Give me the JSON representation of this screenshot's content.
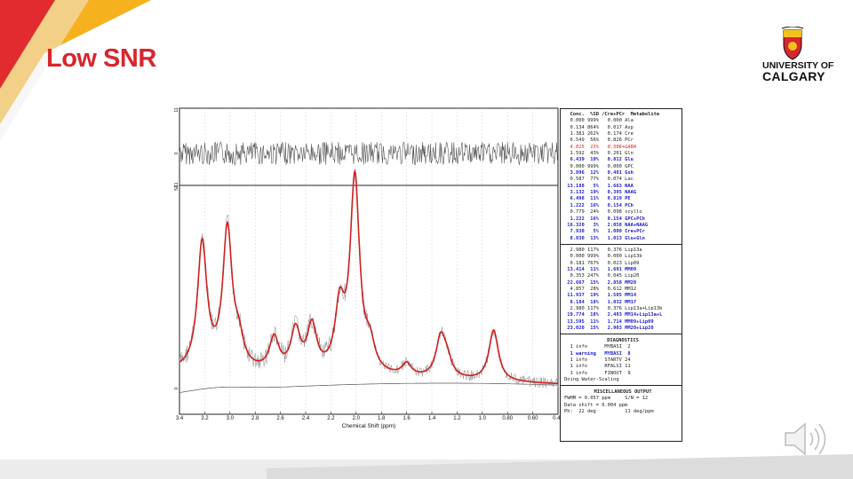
{
  "slide": {
    "title": "Low SNR"
  },
  "logo": {
    "line1": "UNIVERSITY OF",
    "line2": "CALGARY"
  },
  "chart_data": {
    "type": "line",
    "xlabel": "Chemical Shift (ppm)",
    "x_ticks": [
      "3.4",
      "3.2",
      "3.0",
      "2.8",
      "2.6",
      "2.4",
      "2.2",
      "2.0",
      "1.8",
      "1.6",
      "1.4",
      "1.2",
      "1.0",
      "0.80",
      "0.60",
      "0.40"
    ],
    "xlim": [
      3.4,
      0.4
    ],
    "residual_ticks": [
      "11",
      "0",
      "-11"
    ],
    "main_ticks": [
      "51",
      "0"
    ],
    "fit_peaks": [
      {
        "ppm": 3.22,
        "height": 0.62
      },
      {
        "ppm": 3.02,
        "height": 0.68
      },
      {
        "ppm": 2.93,
        "height": 0.12
      },
      {
        "ppm": 2.65,
        "height": 0.16
      },
      {
        "ppm": 2.48,
        "height": 0.2
      },
      {
        "ppm": 2.35,
        "height": 0.22
      },
      {
        "ppm": 2.13,
        "height": 0.3
      },
      {
        "ppm": 2.01,
        "height": 0.95
      },
      {
        "ppm": 1.89,
        "height": 0.12
      },
      {
        "ppm": 1.6,
        "height": 0.06
      },
      {
        "ppm": 1.33,
        "height": 0.19
      },
      {
        "ppm": 1.28,
        "height": 0.08
      },
      {
        "ppm": 0.91,
        "height": 0.25
      }
    ]
  },
  "lcmodel": {
    "header": "  Conc.  %SD /Cre+PCr  Metabolite",
    "metabolites": [
      {
        "t": "  0.000 999%   0.000 Ala",
        "s": "n"
      },
      {
        "t": "  0.134 864%   0.017 Asp",
        "s": "n"
      },
      {
        "t": "  1.381 262%   0.174 Cre",
        "s": "n"
      },
      {
        "t": "  6.549  56%   0.826 PCr",
        "s": "n"
      },
      {
        "t": "  4.015  15%   0.506+GABA",
        "s": "r"
      },
      {
        "t": "  1.592  43%   0.201 Gln",
        "s": "n"
      },
      {
        "t": "  6.439  10%   0.812 Glu",
        "s": "b"
      },
      {
        "t": "  0.000 999%   0.000 GPC",
        "s": "n"
      },
      {
        "t": "  3.896  12%   0.491 Gsh",
        "s": "b"
      },
      {
        "t": "  0.587  77%   0.074 Lac",
        "s": "n"
      },
      {
        "t": " 13.188   5%   1.663 NAA",
        "s": "b"
      },
      {
        "t": "  3.132  19%   0.395 NAAG",
        "s": "b"
      },
      {
        "t": "  6.498  11%   0.819 PE",
        "s": "b"
      },
      {
        "t": "  1.222  16%   0.154 PCh",
        "s": "b"
      },
      {
        "t": "  0.779  24%   0.098 scyllo",
        "s": "n"
      },
      {
        "t": "  1.222  16%   0.154 GPC+PCh",
        "s": "b"
      },
      {
        "t": " 16.320   3%   2.058 NAA+NAAG",
        "s": "b"
      },
      {
        "t": "  7.930   5%   1.000 Cre+PCr",
        "s": "b"
      },
      {
        "t": "  8.030  13%   1.013 Glu+Gln",
        "s": "b"
      }
    ],
    "lipids": [
      {
        "t": "  2.980 117%   0.376 Lip13a",
        "s": "n"
      },
      {
        "t": "  0.000 999%   0.000 Lip13b",
        "s": "n"
      },
      {
        "t": "  0.181 767%   0.023 Lip09",
        "s": "n"
      },
      {
        "t": " 13.414  11%   1.691 MM09",
        "s": "b"
      },
      {
        "t": "  0.353 247%   0.045 Lip20",
        "s": "n"
      },
      {
        "t": " 22.667  15%   2.858 MM20",
        "s": "b"
      },
      {
        "t": "  4.857  28%   0.612 MM12",
        "s": "n"
      },
      {
        "t": " 11.937  19%   1.505 MM14",
        "s": "b"
      },
      {
        "t": "  8.184  18%   1.032 MM17",
        "s": "b"
      },
      {
        "t": "  2.980 117%   0.376 Lip13a+Lip13b",
        "s": "n"
      },
      {
        "t": " 19.774  18%   2.493 MM14+Lip13a+L",
        "s": "b"
      },
      {
        "t": " 13.595  11%   1.714 MM09+Lip09",
        "s": "b"
      },
      {
        "t": " 23.020  15%   2.903 MM20+Lip20",
        "s": "b"
      }
    ],
    "diagnostics_title": "DIAGNOSTICS",
    "diagnostics": [
      {
        "t": "  1 info      MYBASI  2",
        "s": "n"
      },
      {
        "t": "  1 warning   MYBASI  8",
        "s": "b"
      },
      {
        "t": "  1 info      STARTV 24",
        "s": "n"
      },
      {
        "t": "  1 info      RFALSI 11",
        "s": "n"
      },
      {
        "t": "  1 info      FINOUT  9",
        "s": "n"
      },
      {
        "t": "Doing Water-Scaling",
        "s": "n"
      }
    ],
    "misc_title": "MISCELLANEOUS OUTPUT",
    "misc": [
      {
        "t": "FWHM = 0.057 ppm     S/N = 12",
        "s": "n"
      },
      {
        "t": "Data shift = 0.004 ppm",
        "s": "n"
      },
      {
        "t": "Ph:  22 deg          11 deg/ppm",
        "s": "n"
      }
    ]
  }
}
